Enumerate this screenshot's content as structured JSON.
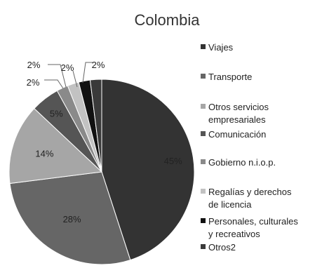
{
  "chart_data": {
    "type": "pie",
    "title": "Colombia",
    "legend_position": "right",
    "categories": [
      "Viajes",
      "Transporte",
      "Otros servicios empresariales",
      "Comunicación",
      "Gobierno n.i.o.p.",
      "Regalías y derechos de licencia",
      "Personales, culturales y recreativos",
      "Otros2"
    ],
    "legend_lines": [
      [
        "Viajes"
      ],
      [
        "Transporte"
      ],
      [
        "Otros servicios",
        "empresariales"
      ],
      [
        "Comunicación"
      ],
      [
        "Gobierno n.i.o.p."
      ],
      [
        "Regalías y derechos",
        "de licencia"
      ],
      [
        "Personales, culturales",
        "y recreativos"
      ],
      [
        "Otros2"
      ]
    ],
    "values": [
      45,
      28,
      14,
      5,
      2,
      2,
      2,
      2
    ],
    "value_labels": [
      "45%",
      "28%",
      "14%",
      "5%",
      "2%",
      "2%",
      "2%",
      "2%"
    ],
    "colors": [
      "#333333",
      "#666666",
      "#a6a6a6",
      "#555555",
      "#8a8a8a",
      "#c2c2c2",
      "#111111",
      "#3a3a3a"
    ]
  }
}
